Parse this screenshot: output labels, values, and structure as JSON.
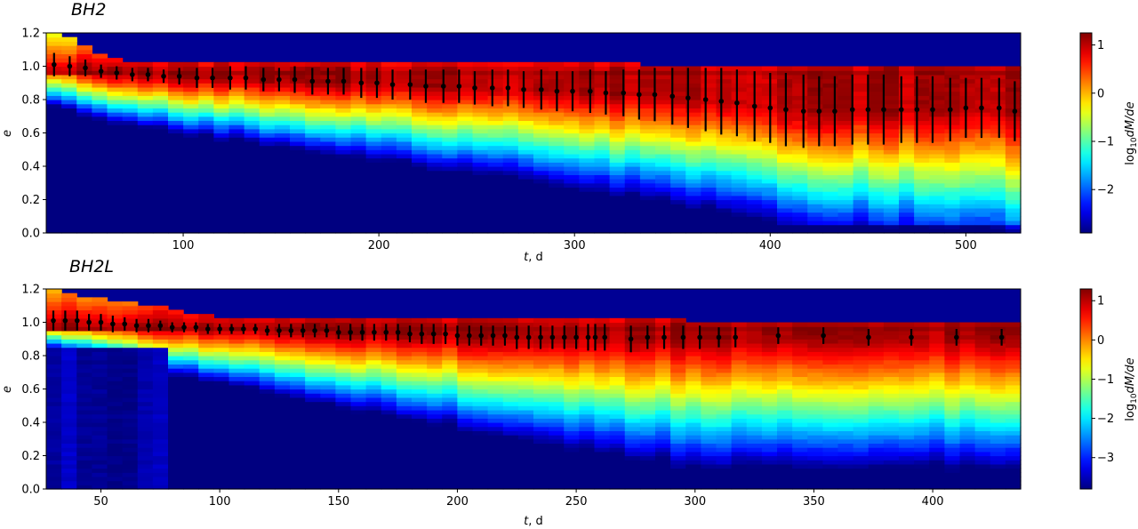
{
  "chart_data": [
    {
      "type": "heatmap",
      "title": "BH2",
      "xlabel_var": "t",
      "xlabel_unit": ", d",
      "ylabel": "e",
      "colorbar_label_pre": "log",
      "colorbar_label_sub": "10",
      "colorbar_label_post": "dM/de",
      "colormap": "jet",
      "xlim": [
        30,
        528
      ],
      "ylim": [
        0.0,
        1.2
      ],
      "clim": [
        -2.9,
        1.25
      ],
      "xticks": [
        100,
        200,
        300,
        400,
        500
      ],
      "yticks": [
        0.0,
        0.2,
        0.4,
        0.6,
        0.8,
        1.0,
        1.2
      ],
      "cticks": [
        -2,
        -1,
        0,
        1
      ],
      "max_e_time": [
        [
          30,
          1.2
        ],
        [
          45,
          1.16
        ],
        [
          55,
          1.08
        ],
        [
          70,
          1.03
        ],
        [
          528,
          1.0
        ]
      ],
      "median_e": {
        "t": [
          34,
          42,
          50,
          58,
          66,
          74,
          82,
          90,
          98,
          107,
          115,
          124,
          132,
          141,
          149,
          157,
          166,
          174,
          182,
          191,
          199,
          207,
          216,
          224,
          233,
          241,
          249,
          258,
          266,
          274,
          283,
          291,
          299,
          308,
          316,
          325,
          333,
          341,
          350,
          358,
          367,
          375,
          383,
          392,
          400,
          408,
          417,
          425,
          433,
          442,
          450,
          458,
          467,
          475,
          483,
          492,
          500,
          508,
          517,
          525
        ],
        "e": [
          1.01,
          1.0,
          0.99,
          0.97,
          0.96,
          0.95,
          0.95,
          0.94,
          0.94,
          0.93,
          0.93,
          0.93,
          0.93,
          0.92,
          0.92,
          0.92,
          0.91,
          0.91,
          0.91,
          0.9,
          0.9,
          0.89,
          0.89,
          0.88,
          0.88,
          0.88,
          0.87,
          0.87,
          0.87,
          0.86,
          0.86,
          0.85,
          0.85,
          0.85,
          0.84,
          0.84,
          0.83,
          0.83,
          0.82,
          0.81,
          0.8,
          0.79,
          0.78,
          0.76,
          0.75,
          0.74,
          0.73,
          0.73,
          0.73,
          0.74,
          0.74,
          0.74,
          0.74,
          0.74,
          0.74,
          0.74,
          0.75,
          0.75,
          0.75,
          0.73
        ],
        "err": [
          0.07,
          0.06,
          0.05,
          0.04,
          0.04,
          0.04,
          0.04,
          0.04,
          0.05,
          0.06,
          0.06,
          0.07,
          0.07,
          0.07,
          0.07,
          0.08,
          0.08,
          0.08,
          0.08,
          0.09,
          0.09,
          0.09,
          0.09,
          0.1,
          0.1,
          0.1,
          0.1,
          0.11,
          0.11,
          0.11,
          0.12,
          0.12,
          0.12,
          0.13,
          0.13,
          0.14,
          0.15,
          0.16,
          0.17,
          0.18,
          0.19,
          0.2,
          0.2,
          0.21,
          0.21,
          0.22,
          0.22,
          0.21,
          0.21,
          0.21,
          0.21,
          0.21,
          0.2,
          0.2,
          0.2,
          0.19,
          0.18,
          0.18,
          0.18,
          0.18
        ]
      }
    },
    {
      "type": "heatmap",
      "title": "BH2L",
      "xlabel_var": "t",
      "xlabel_unit": ", d",
      "ylabel": "e",
      "colorbar_label_pre": "log",
      "colorbar_label_sub": "10",
      "colorbar_label_post": "dM/de",
      "colormap": "jet",
      "xlim": [
        27,
        437
      ],
      "ylim": [
        0.0,
        1.2
      ],
      "clim": [
        -3.8,
        1.3
      ],
      "xticks": [
        50,
        100,
        150,
        200,
        250,
        300,
        350,
        400
      ],
      "yticks": [
        0.0,
        0.2,
        0.4,
        0.6,
        0.8,
        1.0,
        1.2
      ],
      "cticks": [
        -3,
        -2,
        -1,
        0,
        1
      ],
      "max_e_time": [
        [
          27,
          1.2
        ],
        [
          50,
          1.14
        ],
        [
          80,
          1.08
        ],
        [
          100,
          1.03
        ],
        [
          437,
          1.0
        ]
      ],
      "median_e": {
        "t": [
          30,
          35,
          40,
          45,
          50,
          55,
          60,
          65,
          70,
          75,
          80,
          85,
          90,
          95,
          100,
          105,
          110,
          115,
          120,
          125,
          130,
          135,
          140,
          145,
          150,
          155,
          160,
          165,
          170,
          175,
          180,
          185,
          190,
          195,
          200,
          205,
          210,
          215,
          220,
          225,
          230,
          235,
          240,
          245,
          250,
          255,
          258,
          262,
          273,
          280,
          287,
          295,
          302,
          310,
          317,
          335,
          354,
          373,
          391,
          410,
          429
        ],
        "e": [
          1.01,
          1.01,
          1.01,
          1.0,
          1.0,
          0.99,
          0.99,
          0.98,
          0.98,
          0.98,
          0.97,
          0.97,
          0.97,
          0.96,
          0.96,
          0.96,
          0.96,
          0.96,
          0.95,
          0.95,
          0.95,
          0.95,
          0.95,
          0.95,
          0.94,
          0.94,
          0.94,
          0.94,
          0.94,
          0.94,
          0.93,
          0.93,
          0.93,
          0.93,
          0.92,
          0.92,
          0.92,
          0.92,
          0.92,
          0.91,
          0.91,
          0.91,
          0.91,
          0.91,
          0.91,
          0.91,
          0.91,
          0.91,
          0.9,
          0.91,
          0.91,
          0.91,
          0.91,
          0.91,
          0.91,
          0.92,
          0.92,
          0.91,
          0.91,
          0.91,
          0.91
        ],
        "err": [
          0.06,
          0.06,
          0.06,
          0.05,
          0.05,
          0.05,
          0.04,
          0.04,
          0.04,
          0.03,
          0.03,
          0.03,
          0.03,
          0.03,
          0.03,
          0.03,
          0.03,
          0.03,
          0.03,
          0.04,
          0.04,
          0.04,
          0.04,
          0.04,
          0.04,
          0.05,
          0.05,
          0.05,
          0.05,
          0.05,
          0.05,
          0.06,
          0.06,
          0.06,
          0.06,
          0.06,
          0.06,
          0.06,
          0.06,
          0.07,
          0.07,
          0.07,
          0.07,
          0.07,
          0.07,
          0.08,
          0.08,
          0.08,
          0.08,
          0.07,
          0.07,
          0.07,
          0.07,
          0.06,
          0.06,
          0.05,
          0.05,
          0.05,
          0.05,
          0.05,
          0.05
        ]
      }
    }
  ]
}
